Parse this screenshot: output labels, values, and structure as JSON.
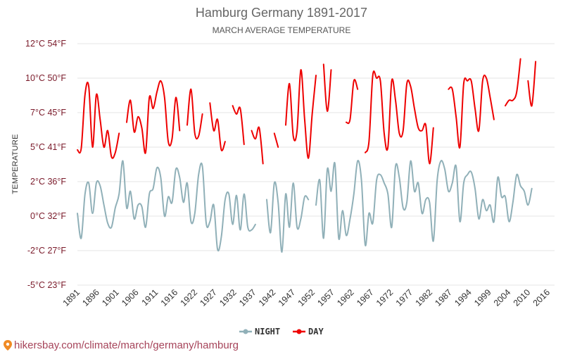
{
  "chart_data": {
    "type": "line",
    "title": "Hamburg Germany 1891-2017",
    "subtitle": "MARCH AVERAGE TEMPERATURE",
    "ylabel": "TEMPERATURE",
    "ylim": [
      -5,
      12.5
    ],
    "xlim": [
      1891,
      2017
    ],
    "y_ticks": [
      {
        "value": 12.5,
        "label": "12°C 54°F"
      },
      {
        "value": 10,
        "label": "10°C 50°F"
      },
      {
        "value": 7.5,
        "label": "7°C 45°F"
      },
      {
        "value": 5,
        "label": "5°C 41°F"
      },
      {
        "value": 2.5,
        "label": "2°C 36°F"
      },
      {
        "value": 0,
        "label": "0°C 32°F"
      },
      {
        "value": -2.5,
        "label": "-2°C 27°F"
      },
      {
        "value": -5,
        "label": "-5°C 23°F"
      }
    ],
    "x_ticks": [
      "1891",
      "1896",
      "1901",
      "1906",
      "1911",
      "1916",
      "1922",
      "1927",
      "1932",
      "1937",
      "1942",
      "1947",
      "1952",
      "1957",
      "1962",
      "1967",
      "1972",
      "1977",
      "1982",
      "1987",
      "1994",
      "1999",
      "2004",
      "2010",
      "2016"
    ],
    "series": [
      {
        "name": "NIGHT",
        "color": "#90b0b8",
        "segments": [
          [
            [
              1891,
              0.2
            ],
            [
              1892,
              -1.6
            ],
            [
              1893,
              1.6
            ],
            [
              1894,
              2.4
            ],
            [
              1895,
              0.2
            ],
            [
              1896,
              2.4
            ],
            [
              1897,
              2.2
            ],
            [
              1898,
              0.8
            ],
            [
              1899,
              -0.5
            ],
            [
              1900,
              -0.8
            ],
            [
              1901,
              0.6
            ],
            [
              1902,
              1.6
            ],
            [
              1903,
              4.0
            ],
            [
              1904,
              0.6
            ],
            [
              1905,
              1.8
            ],
            [
              1906,
              -0.2
            ],
            [
              1907,
              0.8
            ],
            [
              1908,
              0.7
            ],
            [
              1909,
              -0.8
            ],
            [
              1910,
              1.6
            ],
            [
              1911,
              2.0
            ],
            [
              1912,
              3.5
            ],
            [
              1913,
              2.8
            ],
            [
              1914,
              0.0
            ],
            [
              1915,
              1.4
            ],
            [
              1916,
              1.0
            ],
            [
              1917,
              3.4
            ],
            [
              1918,
              2.8
            ],
            [
              1919,
              1.0
            ],
            [
              1920,
              2.4
            ],
            [
              1921,
              -0.4
            ],
            [
              1922,
              0.2
            ],
            [
              1923,
              3.0
            ],
            [
              1924,
              3.6
            ],
            [
              1925,
              -0.5
            ],
            [
              1926,
              -0.4
            ],
            [
              1927,
              0.8
            ],
            [
              1928,
              -2.4
            ],
            [
              1929,
              -1.5
            ],
            [
              1930,
              1.2
            ],
            [
              1931,
              1.6
            ],
            [
              1932,
              -0.6
            ],
            [
              1933,
              1.5
            ],
            [
              1934,
              -1.0
            ],
            [
              1935,
              1.6
            ],
            [
              1936,
              -0.8
            ],
            [
              1937,
              -1.0
            ],
            [
              1938,
              -0.6
            ]
          ],
          [
            [
              1941,
              1.2
            ],
            [
              1942,
              -1.2
            ],
            [
              1943,
              2.4
            ],
            [
              1944,
              1.0
            ],
            [
              1945,
              -2.6
            ],
            [
              1946,
              1.6
            ],
            [
              1947,
              -0.8
            ],
            [
              1948,
              2.4
            ],
            [
              1949,
              -0.8
            ],
            [
              1950,
              -0.2
            ],
            [
              1951,
              1.4
            ],
            [
              1952,
              1.2
            ]
          ],
          [
            [
              1954,
              0.8
            ],
            [
              1955,
              2.6
            ],
            [
              1956,
              -1.6
            ],
            [
              1957,
              3.4
            ],
            [
              1958,
              1.8
            ],
            [
              1959,
              3.8
            ],
            [
              1960,
              -1.6
            ],
            [
              1961,
              0.4
            ],
            [
              1962,
              -1.4
            ],
            [
              1963,
              -0.2
            ],
            [
              1964,
              1.6
            ],
            [
              1965,
              4.0
            ],
            [
              1966,
              2.6
            ],
            [
              1967,
              -2.1
            ],
            [
              1968,
              0.2
            ],
            [
              1969,
              -0.5
            ],
            [
              1970,
              2.6
            ],
            [
              1971,
              3.0
            ],
            [
              1972,
              2.4
            ],
            [
              1973,
              1.6
            ],
            [
              1974,
              -0.8
            ],
            [
              1975,
              3.6
            ],
            [
              1976,
              2.8
            ],
            [
              1977,
              0.6
            ],
            [
              1978,
              1.0
            ],
            [
              1979,
              4.0
            ],
            [
              1980,
              1.8
            ],
            [
              1981,
              2.4
            ],
            [
              1982,
              0.2
            ],
            [
              1983,
              1.2
            ],
            [
              1984,
              1.0
            ],
            [
              1985,
              -1.8
            ],
            [
              1986,
              2.6
            ],
            [
              1987,
              4.0
            ],
            [
              1988,
              3.4
            ],
            [
              1989,
              1.8
            ],
            [
              1990,
              2.4
            ],
            [
              1991,
              3.6
            ],
            [
              1992,
              -0.4
            ],
            [
              1993,
              2.4
            ],
            [
              1994,
              3.0
            ],
            [
              1995,
              3.2
            ],
            [
              1996,
              2.0
            ],
            [
              1997,
              -0.2
            ],
            [
              1998,
              1.2
            ],
            [
              1999,
              0.4
            ],
            [
              2000,
              0.8
            ],
            [
              2001,
              -0.4
            ],
            [
              2002,
              2.8
            ],
            [
              2003,
              1.4
            ],
            [
              2004,
              1.4
            ],
            [
              2005,
              -0.4
            ],
            [
              2006,
              1.0
            ],
            [
              2007,
              3.0
            ],
            [
              2008,
              2.2
            ],
            [
              2009,
              1.8
            ],
            [
              2010,
              0.8
            ],
            [
              2011,
              2.0
            ]
          ]
        ]
      },
      {
        "name": "DAY",
        "color": "#ee0000",
        "segments": [
          [
            [
              1891,
              4.8
            ],
            [
              1892,
              4.9
            ],
            [
              1893,
              8.8
            ],
            [
              1894,
              9.4
            ],
            [
              1895,
              5.0
            ],
            [
              1896,
              8.8
            ],
            [
              1897,
              7.0
            ],
            [
              1898,
              5.0
            ],
            [
              1899,
              6.2
            ],
            [
              1900,
              4.3
            ],
            [
              1901,
              4.6
            ],
            [
              1902,
              6.0
            ]
          ],
          [
            [
              1904,
              6.8
            ],
            [
              1905,
              8.4
            ],
            [
              1906,
              6.1
            ],
            [
              1907,
              7.2
            ],
            [
              1908,
              6.4
            ],
            [
              1909,
              4.6
            ],
            [
              1910,
              8.6
            ],
            [
              1911,
              7.8
            ],
            [
              1912,
              9.0
            ],
            [
              1913,
              9.8
            ],
            [
              1914,
              8.6
            ],
            [
              1915,
              5.4
            ],
            [
              1916,
              5.6
            ],
            [
              1917,
              8.6
            ],
            [
              1918,
              6.2
            ]
          ],
          [
            [
              1920,
              6.6
            ],
            [
              1921,
              9.2
            ],
            [
              1922,
              6.0
            ],
            [
              1923,
              5.8
            ],
            [
              1924,
              7.4
            ]
          ],
          [
            [
              1926,
              8.2
            ],
            [
              1927,
              6.2
            ],
            [
              1928,
              7.0
            ],
            [
              1929,
              4.8
            ],
            [
              1930,
              5.4
            ]
          ],
          [
            [
              1932,
              8.0
            ],
            [
              1933,
              7.4
            ],
            [
              1934,
              7.8
            ],
            [
              1935,
              5.2
            ]
          ],
          [
            [
              1937,
              6.2
            ],
            [
              1938,
              5.6
            ],
            [
              1939,
              6.4
            ],
            [
              1940,
              3.8
            ]
          ],
          [
            [
              1943,
              6.0
            ],
            [
              1944,
              5.0
            ]
          ],
          [
            [
              1946,
              6.6
            ],
            [
              1947,
              9.6
            ],
            [
              1948,
              5.8
            ],
            [
              1949,
              6.2
            ],
            [
              1950,
              10.6
            ],
            [
              1951,
              7.0
            ],
            [
              1952,
              4.2
            ],
            [
              1953,
              7.4
            ],
            [
              1954,
              10.2
            ]
          ],
          [
            [
              1956,
              11.0
            ],
            [
              1957,
              7.6
            ],
            [
              1958,
              10.6
            ]
          ],
          [
            [
              1962,
              6.8
            ],
            [
              1963,
              7.0
            ],
            [
              1964,
              9.8
            ],
            [
              1965,
              9.2
            ]
          ],
          [
            [
              1967,
              4.6
            ],
            [
              1968,
              5.4
            ],
            [
              1969,
              10.2
            ],
            [
              1970,
              10.0
            ],
            [
              1971,
              9.8
            ],
            [
              1972,
              6.0
            ],
            [
              1973,
              5.0
            ],
            [
              1974,
              9.8
            ],
            [
              1975,
              8.4
            ],
            [
              1976,
              6.0
            ],
            [
              1977,
              6.2
            ],
            [
              1978,
              9.6
            ],
            [
              1979,
              9.4
            ],
            [
              1980,
              7.8
            ],
            [
              1981,
              6.4
            ],
            [
              1982,
              6.2
            ],
            [
              1983,
              6.6
            ],
            [
              1984,
              3.8
            ],
            [
              1985,
              6.4
            ]
          ],
          [
            [
              1989,
              9.2
            ],
            [
              1990,
              9.2
            ],
            [
              1991,
              7.2
            ],
            [
              1992,
              5.0
            ],
            [
              1993,
              9.6
            ],
            [
              1994,
              9.8
            ],
            [
              1995,
              9.8
            ],
            [
              1996,
              7.8
            ],
            [
              1997,
              6.2
            ],
            [
              1998,
              9.8
            ],
            [
              1999,
              10.0
            ],
            [
              2000,
              8.6
            ],
            [
              2001,
              7.0
            ]
          ],
          [
            [
              2004,
              8.0
            ],
            [
              2005,
              8.4
            ],
            [
              2006,
              8.4
            ],
            [
              2007,
              9.0
            ],
            [
              2008,
              11.4
            ]
          ],
          [
            [
              2010,
              9.8
            ],
            [
              2011,
              8.0
            ],
            [
              2012,
              11.2
            ]
          ]
        ]
      }
    ],
    "legend": {
      "position": "bottom-center",
      "items": [
        "NIGHT",
        "DAY"
      ]
    },
    "grid": true
  },
  "source": {
    "text": "hikersbay.com/climate/march/germany/hamburg"
  }
}
